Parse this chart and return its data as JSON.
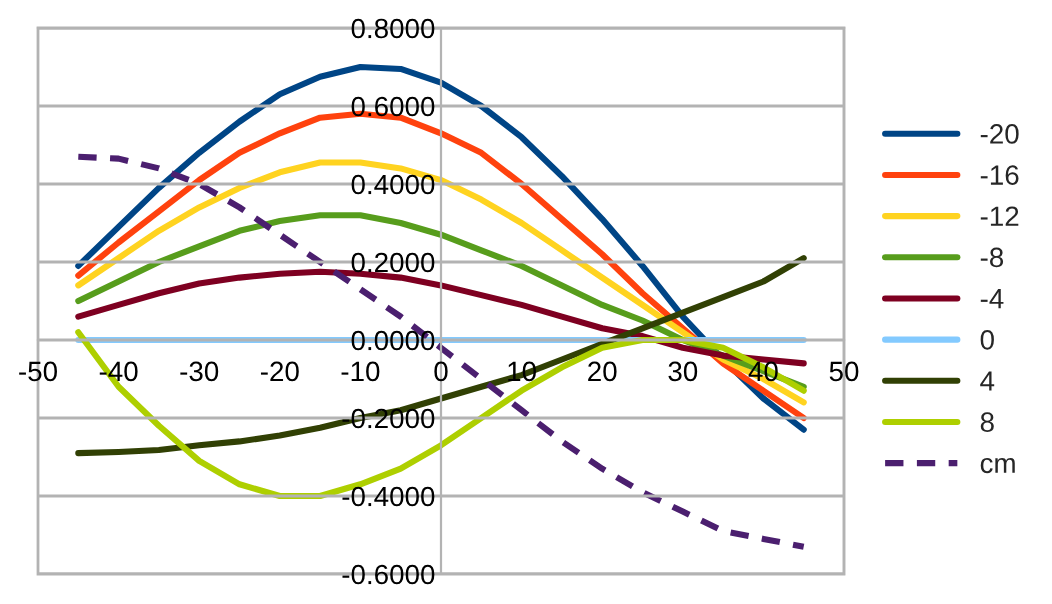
{
  "chart_data": {
    "type": "line",
    "x": [
      -45,
      -40,
      -35,
      -30,
      -25,
      -20,
      -15,
      -10,
      -5,
      0,
      5,
      10,
      15,
      20,
      25,
      30,
      35,
      40,
      45
    ],
    "series": [
      {
        "name": "-20",
        "color": "#004586",
        "values": [
          0.19,
          0.29,
          0.39,
          0.48,
          0.56,
          0.63,
          0.675,
          0.7,
          0.695,
          0.66,
          0.6,
          0.52,
          0.42,
          0.31,
          0.19,
          0.06,
          -0.05,
          -0.15,
          -0.23
        ]
      },
      {
        "name": "-16",
        "color": "#ff420e",
        "values": [
          0.165,
          0.25,
          0.33,
          0.41,
          0.48,
          0.53,
          0.57,
          0.58,
          0.57,
          0.53,
          0.48,
          0.4,
          0.31,
          0.22,
          0.12,
          0.03,
          -0.06,
          -0.13,
          -0.2
        ]
      },
      {
        "name": "-12",
        "color": "#ffd320",
        "values": [
          0.14,
          0.21,
          0.28,
          0.34,
          0.39,
          0.43,
          0.455,
          0.455,
          0.44,
          0.41,
          0.36,
          0.3,
          0.23,
          0.16,
          0.09,
          0.02,
          -0.05,
          -0.1,
          -0.16
        ]
      },
      {
        "name": "-8",
        "color": "#579d1c",
        "values": [
          0.1,
          0.15,
          0.2,
          0.24,
          0.28,
          0.305,
          0.32,
          0.32,
          0.3,
          0.27,
          0.23,
          0.19,
          0.14,
          0.09,
          0.05,
          0.0,
          -0.04,
          -0.08,
          -0.12
        ]
      },
      {
        "name": "-4",
        "color": "#7e0021",
        "values": [
          0.06,
          0.09,
          0.12,
          0.145,
          0.16,
          0.17,
          0.175,
          0.17,
          0.16,
          0.14,
          0.115,
          0.09,
          0.06,
          0.03,
          0.01,
          -0.02,
          -0.04,
          -0.05,
          -0.06
        ]
      },
      {
        "name": "0",
        "color": "#83caff",
        "values": [
          0,
          0,
          0,
          0,
          0,
          0,
          0,
          0,
          0,
          0,
          0,
          0,
          0,
          0,
          0,
          0,
          0,
          0,
          0
        ]
      },
      {
        "name": "4",
        "color": "#314004",
        "values": [
          -0.29,
          -0.287,
          -0.282,
          -0.27,
          -0.26,
          -0.245,
          -0.225,
          -0.2,
          -0.18,
          -0.15,
          -0.12,
          -0.09,
          -0.05,
          -0.01,
          0.03,
          0.07,
          0.11,
          0.15,
          0.21
        ]
      },
      {
        "name": "8",
        "color": "#aecf00",
        "values": [
          0.02,
          -0.12,
          -0.22,
          -0.31,
          -0.37,
          -0.4,
          -0.4,
          -0.37,
          -0.33,
          -0.27,
          -0.2,
          -0.13,
          -0.07,
          -0.02,
          0.0,
          0.0,
          -0.02,
          -0.07,
          -0.13
        ]
      },
      {
        "name": "cm",
        "color": "#4b1f6f",
        "line_style": "dashed",
        "values": [
          0.47,
          0.465,
          0.44,
          0.4,
          0.34,
          0.27,
          0.2,
          0.13,
          0.06,
          -0.02,
          -0.1,
          -0.18,
          -0.26,
          -0.33,
          -0.39,
          -0.44,
          -0.49,
          -0.51,
          -0.53
        ]
      }
    ],
    "xlim": [
      -50,
      50
    ],
    "xticks": [
      -50,
      -40,
      -30,
      -20,
      -10,
      0,
      10,
      20,
      30,
      40,
      50
    ],
    "ylim": [
      -0.6,
      0.8
    ],
    "yticks": [
      {
        "value": -0.6,
        "label": "-0.6000"
      },
      {
        "value": -0.4,
        "label": "-0.4000"
      },
      {
        "value": -0.2,
        "label": "-0.2000"
      },
      {
        "value": 0,
        "label": "0.0000"
      },
      {
        "value": 0.2,
        "label": "0.2000"
      },
      {
        "value": 0.4,
        "label": "0.4000"
      },
      {
        "value": 0.6,
        "label": "0.6000"
      },
      {
        "value": 0.8,
        "label": "0.8000"
      }
    ],
    "grid": "y",
    "legend": "right",
    "marker": "none"
  }
}
